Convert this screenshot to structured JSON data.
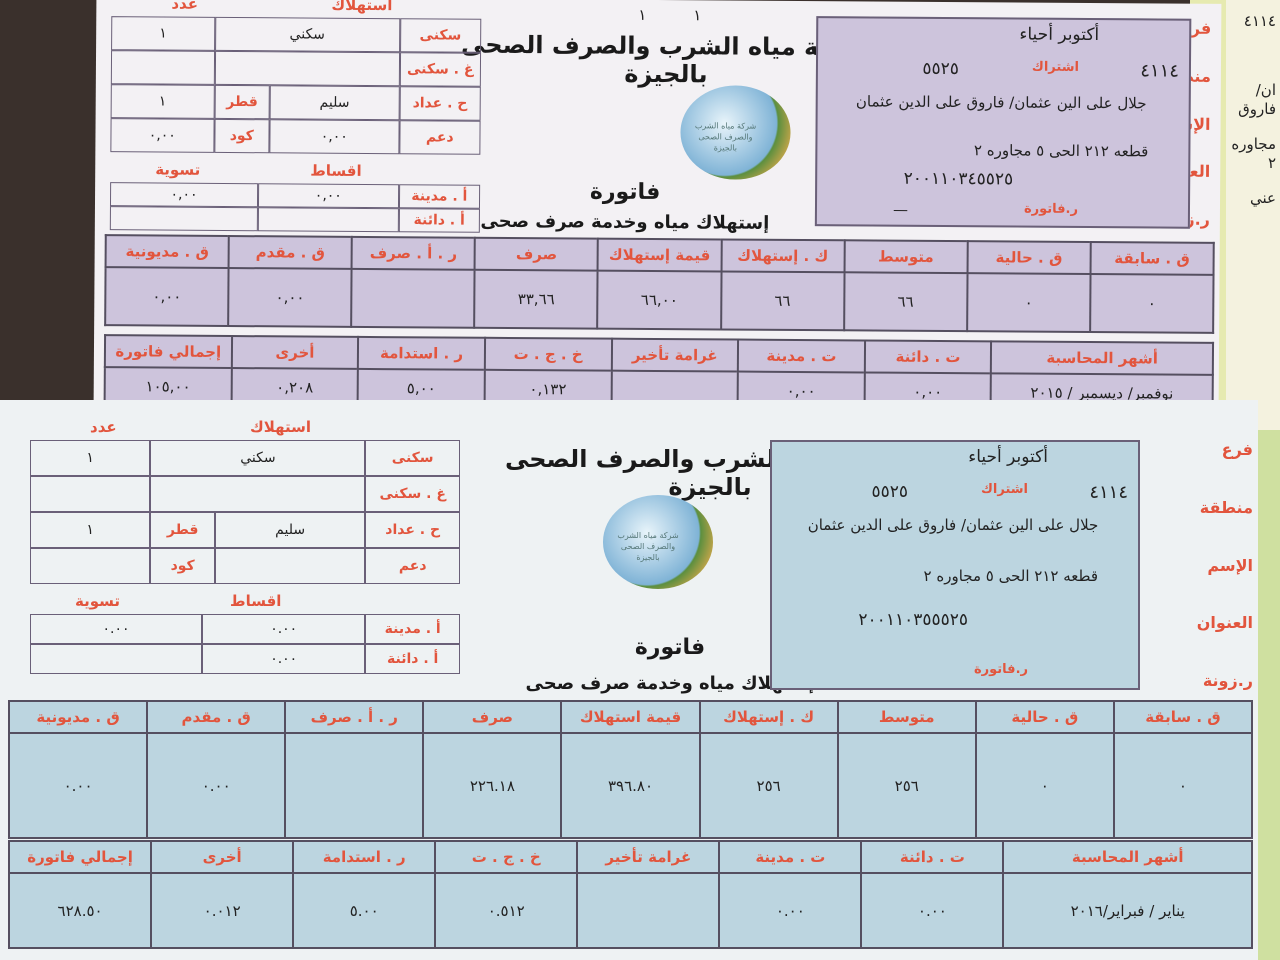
{
  "side_bill": {
    "area": "٤١١٤",
    "name_part": "ان/ فاروق",
    "address_part": "مجاوره ٢",
    "type_part": "عني"
  },
  "bills": [
    {
      "company": "شركة مياه الشرب والصرف الصحى بالجيزة",
      "logo_caption": "شركة مياه الشرب والصرف الصحى بالجيزة",
      "doc_title": "فاتورة",
      "doc_subtitle": "إستهلاك مياه وخدمة صرف صحى",
      "top_marks": [
        "١",
        "١"
      ],
      "left_box": {
        "col_headers": {
          "consumption": "استهلاك",
          "count": "عدد"
        },
        "rows": [
          {
            "label": "سكنى",
            "consumption": "سكني",
            "count": "١"
          },
          {
            "label": "غ . سكنى",
            "consumption": "",
            "count": ""
          }
        ],
        "meter_label": "ح . عداد",
        "meter_status": "سليم",
        "diameter_label": "قطر",
        "code_label": "كود",
        "meter_count": "١",
        "support_label": "دعم",
        "support_value": "٠,٠٠",
        "code_value": "٠,٠٠",
        "installments_label": "اقساط",
        "settlement_label": "تسوية",
        "debit_label": "أ . مدينة",
        "debit_installments": "٠,٠٠",
        "debit_settlement": "٠,٠٠",
        "credit_label": "أ . دائنة",
        "credit_installments": "",
        "credit_settlement": ""
      },
      "right_box": {
        "branch_label": "فرع",
        "branch": "أكتوبر أحياء",
        "area_label": "منطقة",
        "area": "٤١١٤",
        "subscription_label": "اشتراك",
        "subscription": "٥٥٢٥",
        "name_label": "الإسم",
        "name": "جلال على الين عثمان/ فاروق على الدين عثمان",
        "address_label": "العنوان",
        "address": "قطعه ٢١٢ الحى ٥ مجاوره ٢",
        "zone_label": "ر.زونة",
        "zone": "٢٠٠١١٠٣٤٥٥٢٥",
        "invoice_label": "ر.فاتورة",
        "invoice": "—"
      },
      "table1": {
        "headers": [
          "ق . سابقة",
          "ق . حالية",
          "متوسط",
          "ك . إستهلاك",
          "قيمة إستهلاك",
          "صرف",
          "ر . أ . صرف",
          "ق . مقدم",
          "ق . مديونية"
        ],
        "values": [
          "٠",
          "٠",
          "٦٦",
          "٦٦",
          "٦٦,٠٠",
          "٣٣,٦٦",
          "",
          "٠,٠٠",
          "٠,٠٠"
        ]
      },
      "table2": {
        "headers": [
          "أشهر المحاسبة",
          "ت . دائنة",
          "ت . مدينة",
          "غرامة تأخير",
          "خ . ج . ت",
          "ر . استدامة",
          "أخرى",
          "إجمالي فاتورة"
        ],
        "values": [
          "نوفمبر/ ديسمبر / ٢٠١٥",
          "٠,٠٠",
          "٠,٠٠",
          "",
          "٠,١٣٢",
          "٥,٠٠",
          "٠,٢٠٨",
          "١٠٥,٠٠"
        ]
      }
    },
    {
      "company": "شركة مياه الشرب والصرف الصحى بالجيزة",
      "logo_caption": "شركة مياه الشرب والصرف الصحى بالجيزة",
      "doc_title": "فاتورة",
      "doc_subtitle": "إستهلاك مياه وخدمة صرف صحى",
      "top_marks": [
        "",
        ""
      ],
      "left_box": {
        "col_headers": {
          "consumption": "استهلاك",
          "count": "عدد"
        },
        "rows": [
          {
            "label": "سكنى",
            "consumption": "سكني",
            "count": "١"
          },
          {
            "label": "غ . سكنى",
            "consumption": "",
            "count": ""
          }
        ],
        "meter_label": "ح . عداد",
        "meter_status": "سليم",
        "diameter_label": "قطر",
        "code_label": "كود",
        "meter_count": "١",
        "support_label": "دعم",
        "support_value": "",
        "code_value": "",
        "installments_label": "اقساط",
        "settlement_label": "تسوية",
        "debit_label": "أ . مدينة",
        "debit_installments": "٠.٠٠",
        "debit_settlement": "٠.٠٠",
        "credit_label": "أ . دائنة",
        "credit_installments": "٠.٠٠",
        "credit_settlement": ""
      },
      "right_box": {
        "branch_label": "فرع",
        "branch": "أكتوبر أحياء",
        "area_label": "منطقة",
        "area": "٤١١٤",
        "subscription_label": "اشتراك",
        "subscription": "٥٥٢٥",
        "name_label": "الإسم",
        "name": "جلال على الين عثمان/ فاروق على الدين عثمان",
        "address_label": "العنوان",
        "address": "قطعه ٢١٢ الحى ٥ مجاوره ٢",
        "zone_label": "ر.زونة",
        "zone": "٢٠٠١١٠٣٥٥٥٢٥",
        "invoice_label": "ر.فاتورة",
        "invoice": ""
      },
      "table1": {
        "headers": [
          "ق . سابقة",
          "ق . حالية",
          "متوسط",
          "ك . إستهلاك",
          "قيمة استهلاك",
          "صرف",
          "ر . أ . صرف",
          "ق . مقدم",
          "ق . مديونية"
        ],
        "values": [
          "٠",
          "٠",
          "٢٥٦",
          "٢٥٦",
          "٣٩٦.٨٠",
          "٢٢٦.١٨",
          "",
          "٠.٠٠",
          "٠.٠٠"
        ]
      },
      "table2": {
        "headers": [
          "أشهر المحاسبة",
          "ت . دائنة",
          "ت . مدينة",
          "غرامة تأخير",
          "خ . ج . ت",
          "ر . استدامة",
          "أخرى",
          "إجمالي فاتورة"
        ],
        "values": [
          "يناير / فبراير/٢٠١٦",
          "٠.٠٠",
          "٠.٠٠",
          "",
          "٠.٥١٢",
          "٥.٠٠",
          "٠.٠١٢",
          "٦٢٨.٥٠"
        ]
      }
    }
  ],
  "colors": {
    "label_red": "#e2553d",
    "bill1_fill": "#cdc4dc",
    "bill2_fill": "#bcd5e0"
  }
}
